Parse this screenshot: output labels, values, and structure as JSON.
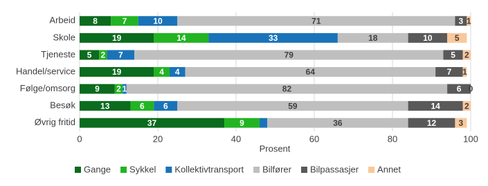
{
  "chart_data": {
    "type": "stacked-barh",
    "categories": [
      "Arbeid",
      "Skole",
      "Tjeneste",
      "Handel/service",
      "Følge/omsorg",
      "Besøk",
      "Øvrig fritid"
    ],
    "x_label": "Prosent",
    "xlim": [
      0,
      100
    ],
    "xticks": [
      0,
      20,
      40,
      60,
      80,
      100
    ],
    "grid": true,
    "series": [
      {
        "name": "Gange",
        "color": "#0b6b1e",
        "values": [
          8,
          19,
          5,
          19,
          9,
          13,
          37
        ]
      },
      {
        "name": "Sykkel",
        "color": "#22b422",
        "values": [
          7,
          14,
          2,
          4,
          2,
          6,
          9
        ]
      },
      {
        "name": "Kollektivtransport",
        "color": "#1a73b8",
        "values": [
          10,
          33,
          7,
          4,
          1,
          6,
          2
        ],
        "value_labels": [
          "10",
          "33",
          "7",
          "4",
          "1",
          "6",
          null
        ]
      },
      {
        "name": "Bilfører",
        "color": "#bfbfbf",
        "values": [
          71,
          18,
          79,
          64,
          82,
          59,
          36
        ]
      },
      {
        "name": "Bilpassasjer",
        "color": "#595959",
        "values": [
          3,
          10,
          5,
          7,
          6,
          14,
          12
        ]
      },
      {
        "name": "Annet",
        "color": "#f9c89b",
        "values": [
          1,
          5,
          2,
          1,
          0,
          2,
          3
        ]
      }
    ]
  }
}
